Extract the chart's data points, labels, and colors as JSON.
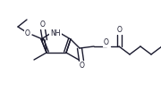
{
  "bg_color": "#ffffff",
  "line_color": "#1a1a2e",
  "lw": 1.0,
  "figsize": [
    1.8,
    1.02
  ],
  "dpi": 100,
  "xlim": [
    0,
    180
  ],
  "ylim": [
    0,
    102
  ]
}
